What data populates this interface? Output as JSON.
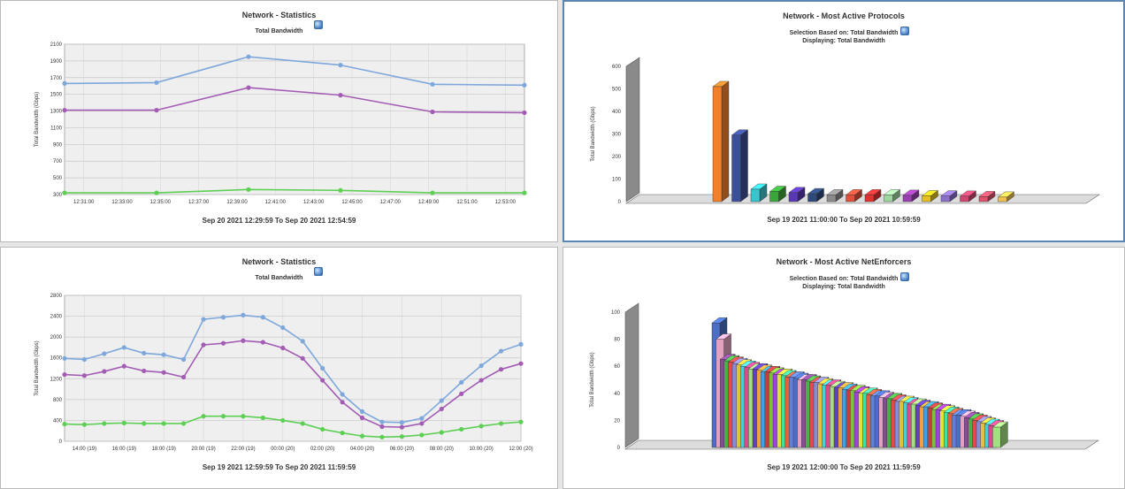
{
  "panels": {
    "p1": {
      "title": "Network - Statistics",
      "subtitle": "Total Bandwidth",
      "range": "Sep 20 2021  12:29:59  To  Sep 20 2021  12:54:59"
    },
    "p2": {
      "title": "Network - Most Active Protocols",
      "subtitle1": "Selection Based on: Total Bandwidth",
      "subtitle2": "Displaying: Total Bandwidth",
      "range": "Sep 19 2021  11:00:00  To  Sep 20 2021  10:59:59"
    },
    "p3": {
      "title": "Network - Statistics",
      "subtitle": "Total Bandwidth",
      "range": "Sep 19 2021  12:59:59  To  Sep 20 2021  11:59:59"
    },
    "p4": {
      "title": "Network - Most Active NetEnforcers",
      "subtitle1": "Selection Based on: Total Bandwidth",
      "subtitle2": "Displaying: Total Bandwidth",
      "range": "Sep 19 2021  12:00:00  To  Sep 20 2021  11:59:59"
    }
  },
  "icons": {
    "export": "export-globe-icon"
  },
  "colors": {
    "blue": "#7ea7dc",
    "purple": "#a35cb3",
    "green": "#5ecf55"
  },
  "chart_data": [
    {
      "type": "line",
      "title": "Network - Statistics",
      "subtitle": "Total Bandwidth",
      "ylabel": "Total Bandwidth (Gbps)",
      "ylim": [
        300,
        2100
      ],
      "yticks": [
        "300",
        "500",
        "700",
        "900",
        "1100",
        "1300",
        "1500",
        "1700",
        "1900",
        "2100"
      ],
      "xlim": [
        0,
        25
      ],
      "xticks": [
        "12:31:00",
        "12:33:00",
        "12:35:00",
        "12:37:00",
        "12:39:00",
        "12:41:00",
        "12:43:00",
        "12:45:00",
        "12:47:00",
        "12:49:00",
        "12:51:00",
        "12:53:00"
      ],
      "grid": true,
      "series": [
        {
          "color": "#7ea7dc",
          "x": [
            0,
            5,
            10,
            15,
            20,
            25
          ],
          "values": [
            1630,
            1640,
            1950,
            1850,
            1620,
            1610
          ]
        },
        {
          "color": "#a35cb3",
          "x": [
            0,
            5,
            10,
            15,
            20,
            25
          ],
          "values": [
            1310,
            1310,
            1580,
            1490,
            1290,
            1280
          ]
        },
        {
          "color": "#5ecf55",
          "x": [
            0,
            5,
            10,
            15,
            20,
            25
          ],
          "values": [
            320,
            320,
            360,
            350,
            320,
            320
          ]
        }
      ]
    },
    {
      "type": "bar",
      "title": "Network - Most Active Protocols",
      "ylabel": "Total Bandwidth (Gbps)",
      "ylim": [
        0,
        600
      ],
      "yticks": [
        "0",
        "100",
        "200",
        "300",
        "400",
        "500",
        "600"
      ],
      "values": [
        510,
        295,
        55,
        45,
        40,
        35,
        30,
        30,
        30,
        30,
        28,
        26,
        25,
        24,
        22,
        20
      ],
      "colors": [
        "#f2802b",
        "#3c4f99",
        "#38c6cc",
        "#3aa63a",
        "#5a37b3",
        "#2e4a7a",
        "#8a8a8a",
        "#e0503a",
        "#e03232",
        "#9fd6a0",
        "#9a3fb0",
        "#e5c020",
        "#8a70c8",
        "#d0466e",
        "#e0506a",
        "#f0c050"
      ],
      "grid": false
    },
    {
      "type": "line",
      "title": "Network - Statistics",
      "subtitle": "Total Bandwidth",
      "ylabel": "Total Bandwidth (Gbps)",
      "ylim": [
        0,
        2800
      ],
      "yticks": [
        "0",
        "400",
        "800",
        "1200",
        "1600",
        "2000",
        "2400",
        "2800"
      ],
      "xlim": [
        0,
        23
      ],
      "xticks": [
        "14:00 (19)",
        "16:00 (19)",
        "18:00 (19)",
        "20:00 (19)",
        "22:00 (19)",
        "00:00 (20)",
        "02:00 (20)",
        "04:00 (20)",
        "06:00 (20)",
        "08:00 (20)",
        "10:00 (20)",
        "12:00 (20)"
      ],
      "xtick_pos": [
        1,
        3,
        5,
        7,
        9,
        11,
        13,
        15,
        17,
        19,
        21,
        23
      ],
      "grid": true,
      "series": [
        {
          "color": "#7ea7dc",
          "x": [
            0,
            1,
            2,
            3,
            4,
            5,
            6,
            7,
            8,
            9,
            10,
            11,
            12,
            13,
            14,
            15,
            16,
            17,
            18,
            19,
            20,
            21,
            22,
            23
          ],
          "values": [
            1590,
            1570,
            1680,
            1800,
            1690,
            1660,
            1570,
            2340,
            2380,
            2420,
            2380,
            2180,
            1920,
            1400,
            900,
            570,
            370,
            360,
            440,
            780,
            1130,
            1450,
            1730,
            1860
          ]
        },
        {
          "color": "#a35cb3",
          "x": [
            0,
            1,
            2,
            3,
            4,
            5,
            6,
            7,
            8,
            9,
            10,
            11,
            12,
            13,
            14,
            15,
            16,
            17,
            18,
            19,
            20,
            21,
            22,
            23
          ],
          "values": [
            1280,
            1260,
            1340,
            1440,
            1350,
            1320,
            1230,
            1850,
            1880,
            1930,
            1900,
            1790,
            1590,
            1170,
            750,
            450,
            280,
            270,
            340,
            620,
            910,
            1170,
            1380,
            1490
          ]
        },
        {
          "color": "#5ecf55",
          "x": [
            0,
            1,
            2,
            3,
            4,
            5,
            6,
            7,
            8,
            9,
            10,
            11,
            12,
            13,
            14,
            15,
            16,
            17,
            18,
            19,
            20,
            21,
            22,
            23
          ],
          "values": [
            330,
            320,
            340,
            350,
            340,
            340,
            340,
            480,
            480,
            480,
            450,
            400,
            340,
            230,
            160,
            100,
            80,
            90,
            120,
            170,
            230,
            290,
            340,
            370
          ]
        }
      ]
    },
    {
      "type": "bar",
      "title": "Network - Most Active NetEnforcers",
      "ylabel": "Total Bandwidth (Gbps)",
      "ylim": [
        0,
        100
      ],
      "yticks": [
        "0",
        "20",
        "40",
        "60",
        "80",
        "100"
      ],
      "values": [
        92,
        80,
        65,
        64,
        63,
        62,
        61,
        60,
        59,
        58,
        58,
        57,
        56,
        56,
        55,
        54,
        54,
        53,
        52,
        52,
        51,
        50,
        50,
        49,
        48,
        48,
        47,
        46,
        46,
        45,
        44,
        44,
        43,
        42,
        42,
        41,
        40,
        40,
        39,
        38,
        38,
        37,
        36,
        36,
        35,
        34,
        34,
        33,
        32,
        32,
        31,
        30,
        30,
        29,
        28,
        28,
        27,
        26,
        25,
        24,
        24,
        23,
        22,
        21,
        20,
        19,
        18,
        17,
        16,
        15
      ],
      "colors": [
        "#4a6fc4",
        "#e3a0c0",
        "#8a4a9a",
        "#4ab04a",
        "#e34a4a",
        "#8a8ad8",
        "#e3c040",
        "#4ad0d0",
        "#d84a8a",
        "#a0e080",
        "#6040c0",
        "#f0a040",
        "#40a0f0",
        "#c04040",
        "#80c040",
        "#a040e0",
        "#e0e040",
        "#40e0a0",
        "#e06040",
        "#6080e0"
      ],
      "grid": false
    }
  ]
}
